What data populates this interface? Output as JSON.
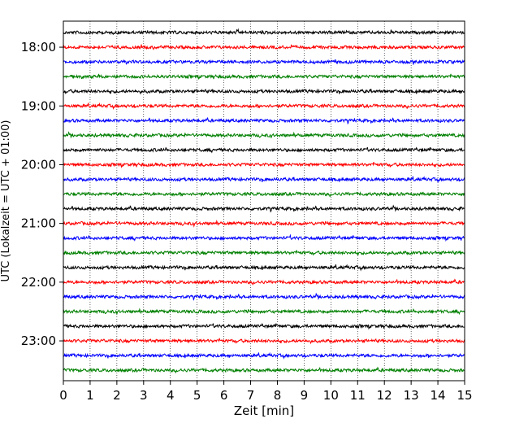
{
  "chart_data": {
    "type": "line",
    "title": "",
    "xlabel": "Zeit  [min]",
    "ylabel": "UTC (Lokalzeit = UTC + 01:00)",
    "xlim": [
      0,
      15
    ],
    "x_ticks": [
      "0",
      "1",
      "2",
      "3",
      "4",
      "5",
      "6",
      "7",
      "8",
      "9",
      "10",
      "11",
      "12",
      "13",
      "14",
      "15"
    ],
    "y_tick_labels": [
      "18:00",
      "19:00",
      "20:00",
      "21:00",
      "22:00",
      "23:00"
    ],
    "grid": "vertical dotted at each minute",
    "trace_interval_min": 15,
    "trace_count": 24,
    "trace_start": "17:45",
    "trace_color_cycle": [
      "#000000",
      "#ff0000",
      "#0000ff",
      "#008000"
    ],
    "trace_content": "seismograph noise, approximately flat around baseline"
  }
}
